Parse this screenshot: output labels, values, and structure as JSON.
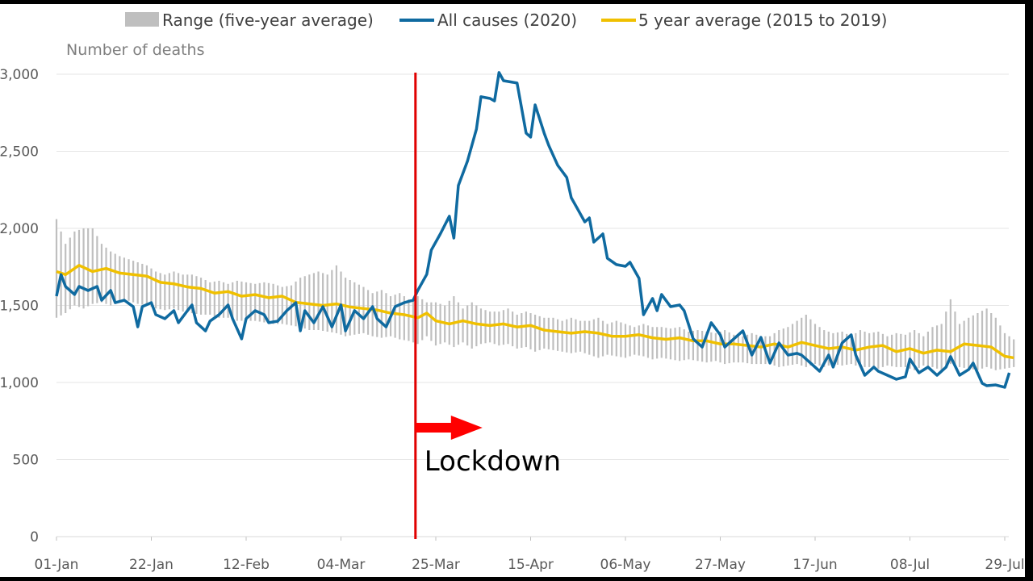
{
  "chart_data": {
    "type": "line",
    "ylabel": "Number of deaths",
    "ylim": [
      0,
      3000
    ],
    "yticks": [
      0,
      500,
      1000,
      1500,
      2000,
      2500,
      3000
    ],
    "ytick_labels": [
      "0",
      "500",
      "1,000",
      "1,500",
      "2,000",
      "2,500",
      "3,000"
    ],
    "x_unit": "day of year 2020 (0 = 01-Jan)",
    "xlim": [
      0,
      212
    ],
    "xticks": [
      0,
      21,
      42,
      63,
      84,
      105,
      126,
      147,
      168,
      189,
      210
    ],
    "xtick_labels": [
      "01-Jan",
      "22-Jan",
      "12-Feb",
      "04-Mar",
      "25-Mar",
      "15-Apr",
      "06-May",
      "27-May",
      "17-Jun",
      "08-Jul",
      "29-Jul"
    ],
    "grid": "horizontal",
    "legend_position": "top",
    "legend": [
      "Range (five-year average)",
      "All causes (2020)",
      "5 year average (2015 to 2019)"
    ],
    "colors": {
      "range": "#bfbfbf",
      "all_causes": "#0f6aa0",
      "average": "#f0c000",
      "lockdown": "#e00000",
      "grid": "#e6e6e6"
    },
    "series": [
      {
        "name": "All causes (2020)",
        "points": [
          [
            0,
            1560
          ],
          [
            1,
            1700
          ],
          [
            2,
            1623
          ],
          [
            4,
            1571
          ],
          [
            5,
            1623
          ],
          [
            7,
            1597
          ],
          [
            9,
            1623
          ],
          [
            10,
            1534
          ],
          [
            12,
            1597
          ],
          [
            13,
            1518
          ],
          [
            15,
            1534
          ],
          [
            17,
            1492
          ],
          [
            18,
            1361
          ],
          [
            19,
            1492
          ],
          [
            21,
            1518
          ],
          [
            22,
            1440
          ],
          [
            24,
            1414
          ],
          [
            26,
            1466
          ],
          [
            27,
            1388
          ],
          [
            29,
            1466
          ],
          [
            30,
            1503
          ],
          [
            31,
            1388
          ],
          [
            33,
            1335
          ],
          [
            34,
            1398
          ],
          [
            36,
            1440
          ],
          [
            38,
            1503
          ],
          [
            39,
            1414
          ],
          [
            41,
            1283
          ],
          [
            42,
            1414
          ],
          [
            44,
            1466
          ],
          [
            46,
            1440
          ],
          [
            47,
            1388
          ],
          [
            49,
            1398
          ],
          [
            51,
            1466
          ],
          [
            53,
            1518
          ],
          [
            54,
            1335
          ],
          [
            55,
            1466
          ],
          [
            57,
            1388
          ],
          [
            59,
            1492
          ],
          [
            61,
            1361
          ],
          [
            63,
            1503
          ],
          [
            64,
            1335
          ],
          [
            66,
            1466
          ],
          [
            68,
            1414
          ],
          [
            70,
            1492
          ],
          [
            71,
            1414
          ],
          [
            73,
            1361
          ],
          [
            75,
            1492
          ],
          [
            77,
            1518
          ],
          [
            79,
            1534
          ],
          [
            80,
            1597
          ],
          [
            82,
            1702
          ],
          [
            83,
            1859
          ],
          [
            85,
            1964
          ],
          [
            87,
            2079
          ],
          [
            88,
            1937
          ],
          [
            89,
            2278
          ],
          [
            91,
            2435
          ],
          [
            93,
            2644
          ],
          [
            94,
            2854
          ],
          [
            96,
            2843
          ],
          [
            97,
            2827
          ],
          [
            98,
            3011
          ],
          [
            99,
            2958
          ],
          [
            102,
            2943
          ],
          [
            104,
            2618
          ],
          [
            105,
            2592
          ],
          [
            106,
            2801
          ],
          [
            108,
            2618
          ],
          [
            109,
            2539
          ],
          [
            111,
            2409
          ],
          [
            113,
            2330
          ],
          [
            114,
            2199
          ],
          [
            115,
            2147
          ],
          [
            117,
            2042
          ],
          [
            118,
            2068
          ],
          [
            119,
            1911
          ],
          [
            121,
            1964
          ],
          [
            122,
            1806
          ],
          [
            124,
            1765
          ],
          [
            126,
            1754
          ],
          [
            127,
            1780
          ],
          [
            129,
            1676
          ],
          [
            130,
            1440
          ],
          [
            132,
            1545
          ],
          [
            133,
            1466
          ],
          [
            134,
            1571
          ],
          [
            136,
            1492
          ],
          [
            138,
            1503
          ],
          [
            139,
            1466
          ],
          [
            141,
            1283
          ],
          [
            143,
            1230
          ],
          [
            145,
            1388
          ],
          [
            147,
            1309
          ],
          [
            148,
            1230
          ],
          [
            150,
            1283
          ],
          [
            152,
            1335
          ],
          [
            154,
            1178
          ],
          [
            156,
            1293
          ],
          [
            158,
            1126
          ],
          [
            160,
            1257
          ],
          [
            162,
            1178
          ],
          [
            164,
            1189
          ],
          [
            165,
            1178
          ],
          [
            167,
            1126
          ],
          [
            169,
            1073
          ],
          [
            171,
            1178
          ],
          [
            172,
            1100
          ],
          [
            174,
            1257
          ],
          [
            176,
            1309
          ],
          [
            177,
            1178
          ],
          [
            179,
            1047
          ],
          [
            181,
            1100
          ],
          [
            182,
            1073
          ],
          [
            184,
            1047
          ],
          [
            186,
            1021
          ],
          [
            188,
            1037
          ],
          [
            189,
            1152
          ],
          [
            191,
            1063
          ],
          [
            193,
            1100
          ],
          [
            195,
            1047
          ],
          [
            197,
            1100
          ],
          [
            198,
            1168
          ],
          [
            200,
            1047
          ],
          [
            202,
            1084
          ],
          [
            203,
            1126
          ],
          [
            205,
            995
          ],
          [
            206,
            979
          ],
          [
            208,
            984
          ],
          [
            210,
            969
          ],
          [
            211,
            1063
          ]
        ]
      },
      {
        "name": "5 year average (2015 to 2019)",
        "points": [
          [
            0,
            1720
          ],
          [
            2,
            1700
          ],
          [
            5,
            1760
          ],
          [
            8,
            1720
          ],
          [
            11,
            1740
          ],
          [
            14,
            1710
          ],
          [
            17,
            1700
          ],
          [
            20,
            1690
          ],
          [
            23,
            1650
          ],
          [
            26,
            1640
          ],
          [
            29,
            1620
          ],
          [
            32,
            1610
          ],
          [
            35,
            1580
          ],
          [
            38,
            1590
          ],
          [
            41,
            1560
          ],
          [
            44,
            1570
          ],
          [
            47,
            1550
          ],
          [
            50,
            1560
          ],
          [
            53,
            1520
          ],
          [
            56,
            1510
          ],
          [
            59,
            1500
          ],
          [
            62,
            1510
          ],
          [
            65,
            1490
          ],
          [
            68,
            1480
          ],
          [
            71,
            1470
          ],
          [
            74,
            1450
          ],
          [
            77,
            1440
          ],
          [
            80,
            1420
          ],
          [
            82,
            1450
          ],
          [
            84,
            1400
          ],
          [
            87,
            1380
          ],
          [
            90,
            1400
          ],
          [
            93,
            1380
          ],
          [
            96,
            1370
          ],
          [
            99,
            1380
          ],
          [
            102,
            1360
          ],
          [
            105,
            1370
          ],
          [
            108,
            1340
          ],
          [
            111,
            1330
          ],
          [
            114,
            1320
          ],
          [
            117,
            1330
          ],
          [
            120,
            1320
          ],
          [
            123,
            1300
          ],
          [
            126,
            1300
          ],
          [
            129,
            1310
          ],
          [
            132,
            1290
          ],
          [
            135,
            1280
          ],
          [
            138,
            1290
          ],
          [
            141,
            1270
          ],
          [
            144,
            1270
          ],
          [
            147,
            1250
          ],
          [
            150,
            1250
          ],
          [
            153,
            1240
          ],
          [
            156,
            1230
          ],
          [
            159,
            1250
          ],
          [
            162,
            1230
          ],
          [
            165,
            1260
          ],
          [
            168,
            1240
          ],
          [
            171,
            1220
          ],
          [
            174,
            1230
          ],
          [
            177,
            1210
          ],
          [
            180,
            1230
          ],
          [
            183,
            1240
          ],
          [
            186,
            1200
          ],
          [
            189,
            1220
          ],
          [
            192,
            1190
          ],
          [
            195,
            1210
          ],
          [
            198,
            1200
          ],
          [
            201,
            1250
          ],
          [
            204,
            1240
          ],
          [
            207,
            1230
          ],
          [
            210,
            1170
          ],
          [
            212,
            1160
          ]
        ]
      }
    ],
    "range": [
      [
        0,
        1420,
        2060
      ],
      [
        2,
        1450,
        1900
      ],
      [
        4,
        1500,
        1980
      ],
      [
        6,
        1480,
        2000
      ],
      [
        8,
        1510,
        2000
      ],
      [
        10,
        1520,
        1900
      ],
      [
        12,
        1500,
        1850
      ],
      [
        14,
        1520,
        1820
      ],
      [
        16,
        1530,
        1800
      ],
      [
        18,
        1510,
        1780
      ],
      [
        20,
        1500,
        1760
      ],
      [
        22,
        1480,
        1720
      ],
      [
        24,
        1470,
        1700
      ],
      [
        26,
        1480,
        1720
      ],
      [
        28,
        1460,
        1700
      ],
      [
        30,
        1450,
        1700
      ],
      [
        32,
        1440,
        1680
      ],
      [
        34,
        1440,
        1650
      ],
      [
        36,
        1420,
        1660
      ],
      [
        38,
        1420,
        1640
      ],
      [
        40,
        1400,
        1660
      ],
      [
        42,
        1400,
        1650
      ],
      [
        44,
        1400,
        1640
      ],
      [
        46,
        1390,
        1650
      ],
      [
        48,
        1380,
        1640
      ],
      [
        50,
        1380,
        1620
      ],
      [
        52,
        1370,
        1630
      ],
      [
        54,
        1360,
        1680
      ],
      [
        56,
        1340,
        1700
      ],
      [
        58,
        1340,
        1720
      ],
      [
        60,
        1330,
        1700
      ],
      [
        62,
        1320,
        1760
      ],
      [
        64,
        1300,
        1680
      ],
      [
        66,
        1310,
        1650
      ],
      [
        68,
        1320,
        1620
      ],
      [
        70,
        1300,
        1580
      ],
      [
        72,
        1290,
        1600
      ],
      [
        74,
        1300,
        1560
      ],
      [
        76,
        1280,
        1580
      ],
      [
        78,
        1270,
        1540
      ],
      [
        80,
        1250,
        1560
      ],
      [
        82,
        1300,
        1520
      ],
      [
        84,
        1240,
        1520
      ],
      [
        86,
        1260,
        1500
      ],
      [
        88,
        1230,
        1560
      ],
      [
        90,
        1260,
        1480
      ],
      [
        92,
        1220,
        1520
      ],
      [
        94,
        1250,
        1480
      ],
      [
        96,
        1260,
        1460
      ],
      [
        98,
        1240,
        1460
      ],
      [
        100,
        1250,
        1480
      ],
      [
        102,
        1220,
        1440
      ],
      [
        104,
        1230,
        1460
      ],
      [
        106,
        1200,
        1440
      ],
      [
        108,
        1220,
        1420
      ],
      [
        110,
        1210,
        1420
      ],
      [
        112,
        1200,
        1400
      ],
      [
        114,
        1190,
        1420
      ],
      [
        116,
        1200,
        1400
      ],
      [
        118,
        1180,
        1400
      ],
      [
        120,
        1160,
        1420
      ],
      [
        122,
        1180,
        1380
      ],
      [
        124,
        1170,
        1400
      ],
      [
        126,
        1160,
        1380
      ],
      [
        128,
        1180,
        1360
      ],
      [
        130,
        1170,
        1380
      ],
      [
        132,
        1150,
        1360
      ],
      [
        134,
        1160,
        1360
      ],
      [
        136,
        1150,
        1350
      ],
      [
        138,
        1140,
        1360
      ],
      [
        140,
        1150,
        1330
      ],
      [
        142,
        1140,
        1340
      ],
      [
        144,
        1130,
        1330
      ],
      [
        146,
        1140,
        1320
      ],
      [
        148,
        1120,
        1340
      ],
      [
        150,
        1130,
        1310
      ],
      [
        152,
        1130,
        1300
      ],
      [
        154,
        1120,
        1320
      ],
      [
        156,
        1120,
        1300
      ],
      [
        158,
        1120,
        1300
      ],
      [
        160,
        1100,
        1340
      ],
      [
        162,
        1110,
        1360
      ],
      [
        164,
        1120,
        1400
      ],
      [
        166,
        1100,
        1440
      ],
      [
        168,
        1120,
        1380
      ],
      [
        170,
        1100,
        1340
      ],
      [
        172,
        1120,
        1320
      ],
      [
        174,
        1110,
        1330
      ],
      [
        176,
        1120,
        1300
      ],
      [
        178,
        1100,
        1340
      ],
      [
        180,
        1100,
        1320
      ],
      [
        182,
        1090,
        1330
      ],
      [
        184,
        1110,
        1300
      ],
      [
        186,
        1100,
        1320
      ],
      [
        188,
        1100,
        1310
      ],
      [
        190,
        1080,
        1340
      ],
      [
        192,
        1110,
        1300
      ],
      [
        194,
        1100,
        1360
      ],
      [
        196,
        1080,
        1380
      ],
      [
        198,
        1120,
        1540
      ],
      [
        200,
        1100,
        1380
      ],
      [
        202,
        1090,
        1420
      ],
      [
        204,
        1080,
        1450
      ],
      [
        206,
        1100,
        1480
      ],
      [
        208,
        1080,
        1420
      ],
      [
        210,
        1090,
        1320
      ],
      [
        212,
        1100,
        1280
      ]
    ],
    "annotations": [
      {
        "text": "Lockdown",
        "x": 82
      }
    ]
  }
}
